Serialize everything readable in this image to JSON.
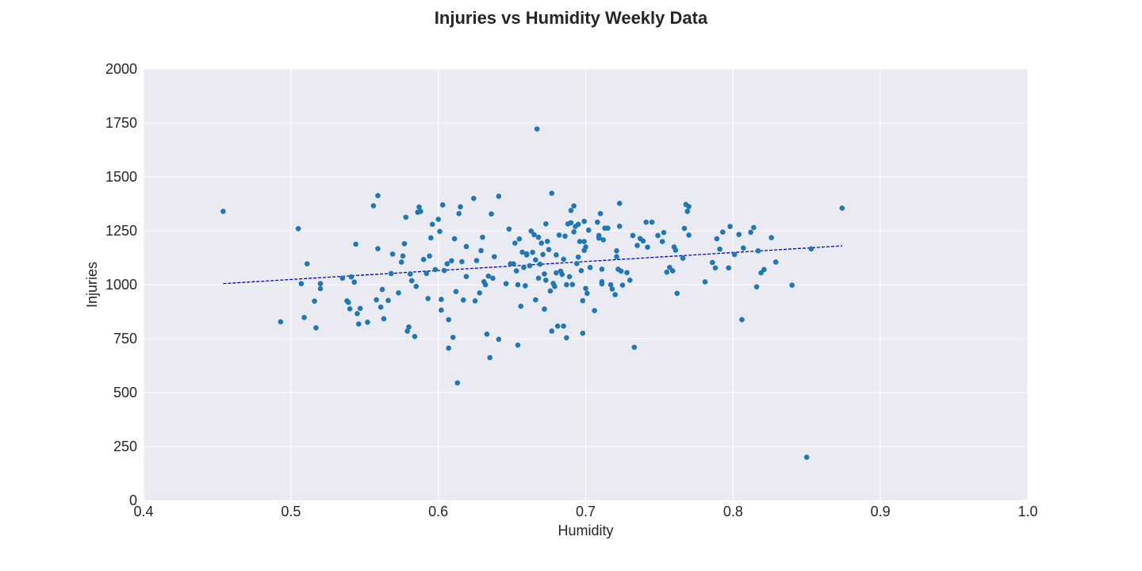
{
  "chart_data": {
    "type": "scatter",
    "title": "Injuries vs Humidity Weekly Data",
    "xlabel": "Humidity",
    "ylabel": "Injuries",
    "xlim": [
      0.4,
      1.0
    ],
    "ylim": [
      0,
      2000
    ],
    "x_ticks": [
      "0.4",
      "0.5",
      "0.6",
      "0.7",
      "0.8",
      "0.9",
      "1.0"
    ],
    "y_ticks": [
      "0",
      "250",
      "500",
      "750",
      "1000",
      "1250",
      "1500",
      "1750",
      "2000"
    ],
    "grid": true,
    "style": {
      "background": "#eaeaf2",
      "grid_color": "#ffffff",
      "point_color": "#1f77b4",
      "trend_color": "#0000cc"
    },
    "trendline": {
      "style": "dashed",
      "x": [
        0.454,
        0.874
      ],
      "y": [
        1005,
        1180
      ]
    },
    "series": [
      {
        "points": [
          [
            0.454,
            1340
          ],
          [
            0.493,
            828
          ],
          [
            0.505,
            1260
          ],
          [
            0.507,
            1005
          ],
          [
            0.509,
            848
          ],
          [
            0.511,
            1097
          ],
          [
            0.516,
            924
          ],
          [
            0.517,
            800
          ],
          [
            0.52,
            1005
          ],
          [
            0.52,
            982
          ],
          [
            0.535,
            1030
          ],
          [
            0.538,
            925
          ],
          [
            0.539,
            918
          ],
          [
            0.54,
            888
          ],
          [
            0.541,
            1036
          ],
          [
            0.543,
            1012
          ],
          [
            0.544,
            1188
          ],
          [
            0.545,
            866
          ],
          [
            0.546,
            818
          ],
          [
            0.547,
            890
          ],
          [
            0.552,
            826
          ],
          [
            0.556,
            1366
          ],
          [
            0.558,
            930
          ],
          [
            0.559,
            1413
          ],
          [
            0.559,
            1167
          ],
          [
            0.561,
            896
          ],
          [
            0.562,
            978
          ],
          [
            0.563,
            842
          ],
          [
            0.566,
            927
          ],
          [
            0.568,
            1052
          ],
          [
            0.569,
            1142
          ],
          [
            0.573,
            962
          ],
          [
            0.575,
            1105
          ],
          [
            0.576,
            1133
          ],
          [
            0.577,
            1190
          ],
          [
            0.578,
            1313
          ],
          [
            0.579,
            785
          ],
          [
            0.58,
            804
          ],
          [
            0.581,
            1050
          ],
          [
            0.582,
            1018
          ],
          [
            0.584,
            760
          ],
          [
            0.585,
            992
          ],
          [
            0.586,
            1336
          ],
          [
            0.587,
            1360
          ],
          [
            0.588,
            1340
          ],
          [
            0.59,
            1117
          ],
          [
            0.592,
            1052
          ],
          [
            0.593,
            936
          ],
          [
            0.594,
            1133
          ],
          [
            0.595,
            1217
          ],
          [
            0.596,
            1280
          ],
          [
            0.598,
            1070
          ],
          [
            0.6,
            1303
          ],
          [
            0.601,
            1247
          ],
          [
            0.602,
            932
          ],
          [
            0.602,
            882
          ],
          [
            0.603,
            1370
          ],
          [
            0.604,
            1066
          ],
          [
            0.606,
            1097
          ],
          [
            0.607,
            706
          ],
          [
            0.607,
            838
          ],
          [
            0.609,
            1111
          ],
          [
            0.61,
            756
          ],
          [
            0.611,
            1213
          ],
          [
            0.612,
            968
          ],
          [
            0.613,
            545
          ],
          [
            0.614,
            1330
          ],
          [
            0.615,
            1361
          ],
          [
            0.616,
            1107
          ],
          [
            0.617,
            929
          ],
          [
            0.619,
            1177
          ],
          [
            0.619,
            1038
          ],
          [
            0.624,
            1400
          ],
          [
            0.625,
            925
          ],
          [
            0.626,
            1112
          ],
          [
            0.628,
            962
          ],
          [
            0.629,
            1158
          ],
          [
            0.63,
            1220
          ],
          [
            0.631,
            1014
          ],
          [
            0.632,
            1000
          ],
          [
            0.633,
            771
          ],
          [
            0.634,
            1040
          ],
          [
            0.635,
            662
          ],
          [
            0.636,
            1328
          ],
          [
            0.637,
            1030
          ],
          [
            0.638,
            1130
          ],
          [
            0.641,
            747
          ],
          [
            0.641,
            1410
          ],
          [
            0.646,
            1005
          ],
          [
            0.648,
            1258
          ],
          [
            0.649,
            1097
          ],
          [
            0.651,
            1097
          ],
          [
            0.652,
            1193
          ],
          [
            0.653,
            1064
          ],
          [
            0.654,
            1000
          ],
          [
            0.654,
            720
          ],
          [
            0.655,
            1212
          ],
          [
            0.656,
            900
          ],
          [
            0.657,
            1151
          ],
          [
            0.658,
            1080
          ],
          [
            0.659,
            995
          ],
          [
            0.66,
            1138
          ],
          [
            0.66,
            1143
          ],
          [
            0.662,
            1088
          ],
          [
            0.663,
            1249
          ],
          [
            0.664,
            1150
          ],
          [
            0.665,
            1232
          ],
          [
            0.666,
            930
          ],
          [
            0.666,
            1115
          ],
          [
            0.667,
            1722
          ],
          [
            0.668,
            1220
          ],
          [
            0.668,
            1030
          ],
          [
            0.669,
            1095
          ],
          [
            0.67,
            1193
          ],
          [
            0.671,
            1140
          ],
          [
            0.672,
            1050
          ],
          [
            0.672,
            887
          ],
          [
            0.673,
            1282
          ],
          [
            0.673,
            1021
          ],
          [
            0.674,
            1201
          ],
          [
            0.675,
            1163
          ],
          [
            0.676,
            971
          ],
          [
            0.677,
            1424
          ],
          [
            0.677,
            785
          ],
          [
            0.678,
            1006
          ],
          [
            0.679,
            992
          ],
          [
            0.68,
            1055
          ],
          [
            0.68,
            1138
          ],
          [
            0.681,
            808
          ],
          [
            0.682,
            1230
          ],
          [
            0.683,
            1063
          ],
          [
            0.684,
            1048
          ],
          [
            0.685,
            808
          ],
          [
            0.685,
            1118
          ],
          [
            0.686,
            1225
          ],
          [
            0.687,
            754
          ],
          [
            0.687,
            1000
          ],
          [
            0.688,
            1282
          ],
          [
            0.689,
            1037
          ],
          [
            0.69,
            1344
          ],
          [
            0.69,
            1287
          ],
          [
            0.691,
            1001
          ],
          [
            0.692,
            1245
          ],
          [
            0.692,
            1365
          ],
          [
            0.693,
            1270
          ],
          [
            0.694,
            1098
          ],
          [
            0.695,
            1128
          ],
          [
            0.695,
            1280
          ],
          [
            0.696,
            1200
          ],
          [
            0.697,
            1065
          ],
          [
            0.698,
            775
          ],
          [
            0.698,
            926
          ],
          [
            0.699,
            1294
          ],
          [
            0.699,
            1200
          ],
          [
            0.699,
            1159
          ],
          [
            0.7,
            1175
          ],
          [
            0.7,
            983
          ],
          [
            0.701,
            960
          ],
          [
            0.702,
            1253
          ],
          [
            0.703,
            1080
          ],
          [
            0.706,
            880
          ],
          [
            0.708,
            1290
          ],
          [
            0.709,
            1228
          ],
          [
            0.709,
            1216
          ],
          [
            0.71,
            1330
          ],
          [
            0.711,
            1072
          ],
          [
            0.711,
            1014
          ],
          [
            0.711,
            1004
          ],
          [
            0.712,
            1208
          ],
          [
            0.713,
            1262
          ],
          [
            0.715,
            1262
          ],
          [
            0.717,
            1000
          ],
          [
            0.718,
            980
          ],
          [
            0.72,
            954
          ],
          [
            0.721,
            1157
          ],
          [
            0.721,
            1130
          ],
          [
            0.722,
            1072
          ],
          [
            0.723,
            1271
          ],
          [
            0.723,
            1377
          ],
          [
            0.724,
            1063
          ],
          [
            0.725,
            998
          ],
          [
            0.728,
            1056
          ],
          [
            0.73,
            1021
          ],
          [
            0.732,
            1228
          ],
          [
            0.733,
            710
          ],
          [
            0.735,
            1182
          ],
          [
            0.737,
            1214
          ],
          [
            0.739,
            1203
          ],
          [
            0.741,
            1290
          ],
          [
            0.742,
            1174
          ],
          [
            0.745,
            1290
          ],
          [
            0.749,
            1228
          ],
          [
            0.752,
            1200
          ],
          [
            0.753,
            1242
          ],
          [
            0.755,
            1058
          ],
          [
            0.757,
            1080
          ],
          [
            0.759,
            1064
          ],
          [
            0.76,
            1175
          ],
          [
            0.761,
            1160
          ],
          [
            0.762,
            960
          ],
          [
            0.766,
            1123
          ],
          [
            0.767,
            1261
          ],
          [
            0.768,
            1372
          ],
          [
            0.769,
            1340
          ],
          [
            0.77,
            1230
          ],
          [
            0.77,
            1362
          ],
          [
            0.781,
            1013
          ],
          [
            0.786,
            1103
          ],
          [
            0.788,
            1078
          ],
          [
            0.789,
            1213
          ],
          [
            0.791,
            1165
          ],
          [
            0.793,
            1244
          ],
          [
            0.797,
            1078
          ],
          [
            0.798,
            1270
          ],
          [
            0.801,
            1140
          ],
          [
            0.804,
            1233
          ],
          [
            0.806,
            838
          ],
          [
            0.807,
            1170
          ],
          [
            0.812,
            1243
          ],
          [
            0.814,
            1265
          ],
          [
            0.816,
            990
          ],
          [
            0.817,
            1157
          ],
          [
            0.819,
            1055
          ],
          [
            0.821,
            1070
          ],
          [
            0.826,
            1218
          ],
          [
            0.829,
            1105
          ],
          [
            0.84,
            998
          ],
          [
            0.85,
            200
          ],
          [
            0.853,
            1166
          ],
          [
            0.874,
            1355
          ]
        ]
      }
    ]
  }
}
